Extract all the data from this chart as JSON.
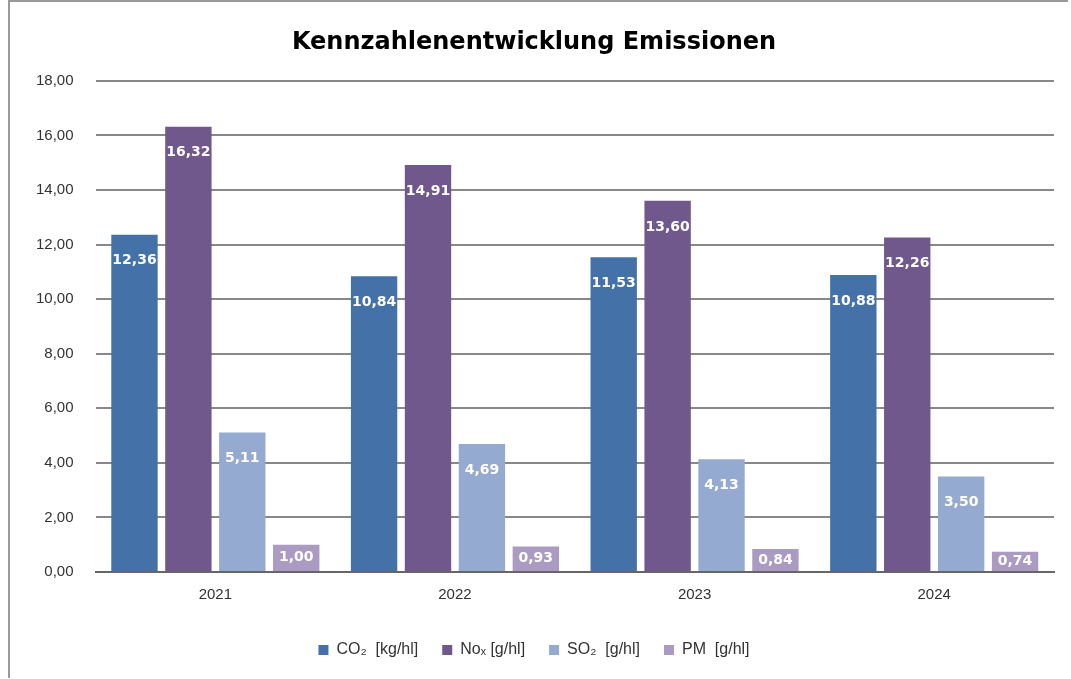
{
  "chart_data": {
    "type": "bar",
    "title": "Kennzahlenentwicklung Emissionen",
    "categories": [
      "2021",
      "2022",
      "2023",
      "2024"
    ],
    "series": [
      {
        "name": "CO₂  [kg/hl]",
        "color": "#4472a8",
        "values": [
          12.36,
          10.84,
          11.53,
          10.88
        ],
        "value_labels": [
          "12,36",
          "10,84",
          "11,53",
          "10,88"
        ]
      },
      {
        "name": "Noₓ [g/hl]",
        "color": "#70578c",
        "values": [
          16.32,
          14.91,
          13.6,
          12.26
        ],
        "value_labels": [
          "16,32",
          "14,91",
          "13,60",
          "12,26"
        ]
      },
      {
        "name": "SO₂  [g/hl]",
        "color": "#95aad0",
        "values": [
          5.11,
          4.69,
          4.13,
          3.5
        ],
        "value_labels": [
          "5,11",
          "4,69",
          "4,13",
          "3,50"
        ]
      },
      {
        "name": "PM  [g/hl]",
        "color": "#ab9bc2",
        "values": [
          1.0,
          0.93,
          0.84,
          0.74
        ],
        "value_labels": [
          "1,00",
          "0,93",
          "0,84",
          "0,74"
        ]
      }
    ],
    "ylim": [
      0,
      18
    ],
    "yticks": [
      {
        "value": 0,
        "label": "0,00"
      },
      {
        "value": 2,
        "label": "2,00"
      },
      {
        "value": 4,
        "label": "4,00"
      },
      {
        "value": 6,
        "label": "6,00"
      },
      {
        "value": 8,
        "label": "8,00"
      },
      {
        "value": 10,
        "label": "10,00"
      },
      {
        "value": 12,
        "label": "12,00"
      },
      {
        "value": 14,
        "label": "14,00"
      },
      {
        "value": 16,
        "label": "16,00"
      },
      {
        "value": 18,
        "label": "18,00"
      }
    ],
    "grid": "y",
    "legend": "bottom"
  }
}
